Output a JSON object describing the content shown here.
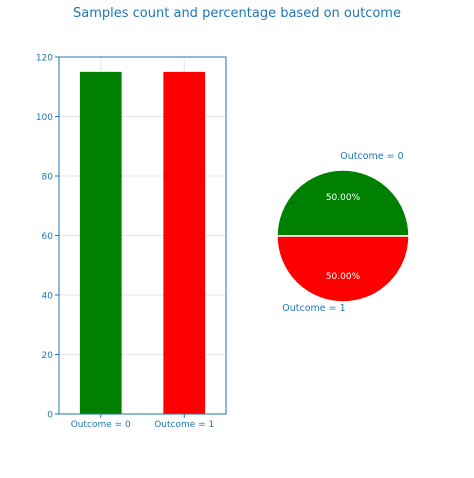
{
  "figure": {
    "title": "Samples count and percentage based on outcome"
  },
  "colors": {
    "axis": "#1f77b4",
    "text": "#1f77b4",
    "grid": "#e6e6e6",
    "green": "#008000",
    "red": "#ff0000"
  },
  "chart_data": [
    {
      "type": "bar",
      "title": "",
      "xlabel": "",
      "ylabel": "",
      "categories": [
        "Outcome = 0",
        "Outcome = 1"
      ],
      "values": [
        115,
        115
      ],
      "colors": [
        "#008000",
        "#ff0000"
      ],
      "ylim": [
        0,
        120
      ],
      "yticks": [
        0,
        20,
        40,
        60,
        80,
        100,
        120
      ],
      "grid": true,
      "legend": "none"
    },
    {
      "type": "pie",
      "title": "",
      "labels": [
        "Outcome = 0",
        "Outcome = 1"
      ],
      "values": [
        50.0,
        50.0
      ],
      "display_values": [
        "50.00%",
        "50.00%"
      ],
      "colors": [
        "#008000",
        "#ff0000"
      ],
      "legend": "none"
    }
  ]
}
